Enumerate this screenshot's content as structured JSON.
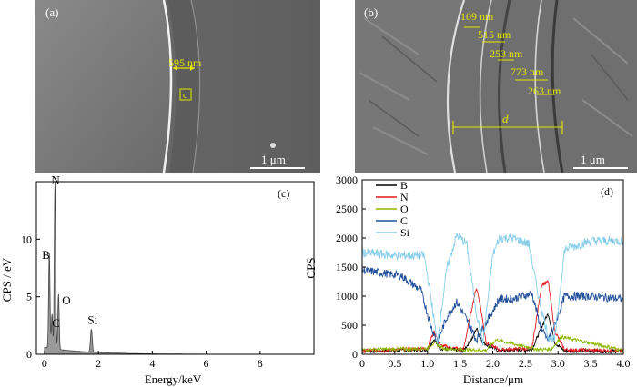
{
  "panel_a": {
    "label": "(a)",
    "measure": "595 nm",
    "box_label": "c",
    "scalebar": "1 μm"
  },
  "panel_b": {
    "label": "(b)",
    "measures": [
      "109 nm",
      "515 nm",
      "253 nm",
      "773 nm",
      "263 nm"
    ],
    "d_label": "d",
    "scalebar": "1 μm"
  },
  "chart_data": [
    {
      "type": "line",
      "panel_label": "(c)",
      "xlabel": "Energy/keV",
      "ylabel": "CPS / eV",
      "xlim": [
        -0.3,
        10
      ],
      "ylim": [
        0,
        15
      ],
      "x_ticks": [
        "0",
        "2",
        "4",
        "6",
        "8"
      ],
      "y_ticks": [
        "0",
        "5",
        "10"
      ],
      "annotations": [
        "N",
        "B",
        "O",
        "C",
        "Si"
      ],
      "peaks": [
        {
          "label": "B",
          "x": 0.18,
          "y": 8.3
        },
        {
          "label": "C",
          "x": 0.28,
          "y": 3.0
        },
        {
          "label": "N",
          "x": 0.39,
          "y": 14.5
        },
        {
          "label": "O",
          "x": 0.52,
          "y": 4.8
        },
        {
          "label": "Si",
          "x": 1.74,
          "y": 2.0
        }
      ]
    },
    {
      "type": "line",
      "panel_label": "(d)",
      "xlabel": "Distance/μm",
      "ylabel": "CPS",
      "xlim": [
        0,
        4.0
      ],
      "ylim": [
        0,
        3000
      ],
      "x_ticks": [
        "0",
        "0.5",
        "1.0",
        "1.5",
        "2.0",
        "2.5",
        "3.0",
        "3.5",
        "4.0"
      ],
      "y_ticks": [
        "0",
        "500",
        "1000",
        "1500",
        "2000",
        "2500",
        "3000"
      ],
      "series": [
        {
          "name": "B",
          "color": "#000000",
          "x": [
            0,
            1.0,
            1.1,
            1.2,
            1.55,
            1.7,
            1.75,
            1.85,
            2.1,
            2.6,
            2.8,
            2.85,
            2.95,
            3.1,
            4.0
          ],
          "y": [
            50,
            80,
            250,
            100,
            60,
            300,
            450,
            200,
            60,
            80,
            600,
            700,
            200,
            60,
            50
          ]
        },
        {
          "name": "N",
          "color": "#e41a1c",
          "x": [
            0,
            1.0,
            1.1,
            1.2,
            1.55,
            1.7,
            1.75,
            1.8,
            1.9,
            2.1,
            2.6,
            2.75,
            2.85,
            2.95,
            3.1,
            4.0
          ],
          "y": [
            60,
            100,
            400,
            150,
            80,
            900,
            1150,
            900,
            200,
            80,
            100,
            1200,
            1250,
            400,
            80,
            60
          ]
        },
        {
          "name": "O",
          "color": "#8db600",
          "x": [
            0,
            1.0,
            1.1,
            1.25,
            1.5,
            1.9,
            2.05,
            2.7,
            2.9,
            3.05,
            4.0
          ],
          "y": [
            80,
            100,
            200,
            100,
            80,
            70,
            250,
            80,
            90,
            300,
            70
          ]
        },
        {
          "name": "C",
          "color": "#1f4e9a",
          "x": [
            0,
            0.3,
            0.6,
            0.9,
            1.05,
            1.15,
            1.3,
            1.45,
            1.6,
            1.75,
            1.95,
            2.1,
            2.3,
            2.6,
            2.75,
            2.85,
            2.95,
            3.1,
            3.5,
            4.0
          ],
          "y": [
            1450,
            1400,
            1350,
            1100,
            500,
            200,
            650,
            900,
            600,
            250,
            650,
            950,
            950,
            1050,
            400,
            250,
            500,
            1000,
            1000,
            950
          ]
        },
        {
          "name": "Si",
          "color": "#87ceeb",
          "x": [
            0,
            0.5,
            0.95,
            1.05,
            1.15,
            1.3,
            1.45,
            1.6,
            1.75,
            1.85,
            2.0,
            2.1,
            2.3,
            2.55,
            2.7,
            2.85,
            2.95,
            3.1,
            3.5,
            4.0
          ],
          "y": [
            1750,
            1700,
            1700,
            1000,
            200,
            1500,
            2050,
            1900,
            700,
            200,
            1700,
            2000,
            2000,
            1900,
            1000,
            300,
            250,
            1800,
            1950,
            1950
          ]
        }
      ]
    }
  ]
}
